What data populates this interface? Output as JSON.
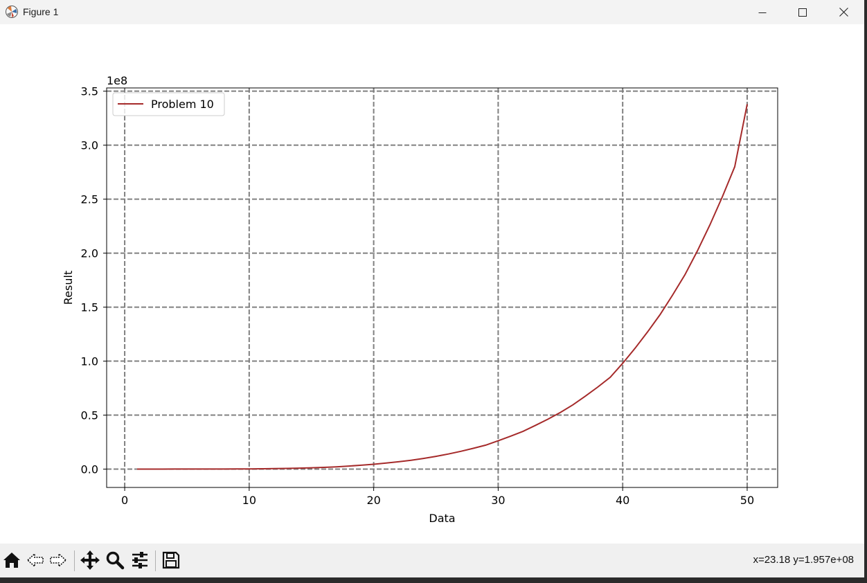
{
  "window": {
    "title": "Figure 1",
    "minimize_icon": "minimize-icon",
    "maximize_icon": "maximize-icon",
    "close_icon": "close-icon"
  },
  "toolbar": {
    "buttons": [
      "home-icon",
      "back-arrow-icon",
      "forward-arrow-icon",
      "pan-move-icon",
      "zoom-magnifier-icon",
      "configure-subplots-icon",
      "save-floppy-icon"
    ],
    "coords": "x=23.18 y=1.957e+08"
  },
  "chart_data": {
    "type": "line",
    "xlabel": "Data",
    "ylabel": "Result",
    "offset_label": "1e8",
    "xlim": [
      -1.45,
      52.45
    ],
    "ylim": [
      -0.17,
      3.53
    ],
    "y_unit_multiplier": 100000000,
    "xticks": [
      0,
      10,
      20,
      30,
      40,
      50
    ],
    "yticks": [
      0.0,
      0.5,
      1.0,
      1.5,
      2.0,
      2.5,
      3.0,
      3.5
    ],
    "xtick_labels": [
      "0",
      "10",
      "20",
      "30",
      "40",
      "50"
    ],
    "ytick_labels": [
      "0.0",
      "0.5",
      "1.0",
      "1.5",
      "2.0",
      "2.5",
      "3.0",
      "3.5"
    ],
    "grid": true,
    "grid_style": "dashed",
    "grid_color": "#808080",
    "legend_placement": "upper left",
    "series": [
      {
        "name": "Problem 10",
        "color": "#a52a2a",
        "x": [
          1,
          2,
          3,
          4,
          5,
          6,
          7,
          8,
          9,
          10,
          11,
          12,
          13,
          14,
          15,
          16,
          17,
          18,
          19,
          20,
          21,
          22,
          23,
          24,
          25,
          26,
          27,
          28,
          29,
          30,
          31,
          32,
          33,
          34,
          35,
          36,
          37,
          38,
          39,
          40,
          41,
          42,
          43,
          44,
          45,
          46,
          47,
          48,
          49,
          50
        ],
        "y": [
          0,
          0.0001,
          0.0002,
          0.0003,
          0.0004,
          0.0005,
          0.0006,
          0.0008,
          0.0012,
          0.002,
          0.003,
          0.0045,
          0.0065,
          0.009,
          0.012,
          0.016,
          0.021,
          0.028,
          0.036,
          0.045,
          0.056,
          0.068,
          0.082,
          0.099,
          0.118,
          0.14,
          0.165,
          0.192,
          0.222,
          0.262,
          0.305,
          0.35,
          0.405,
          0.462,
          0.525,
          0.595,
          0.675,
          0.76,
          0.85,
          0.98,
          1.12,
          1.27,
          1.43,
          1.61,
          1.8,
          2.02,
          2.26,
          2.52,
          2.8,
          3.38
        ]
      }
    ]
  }
}
